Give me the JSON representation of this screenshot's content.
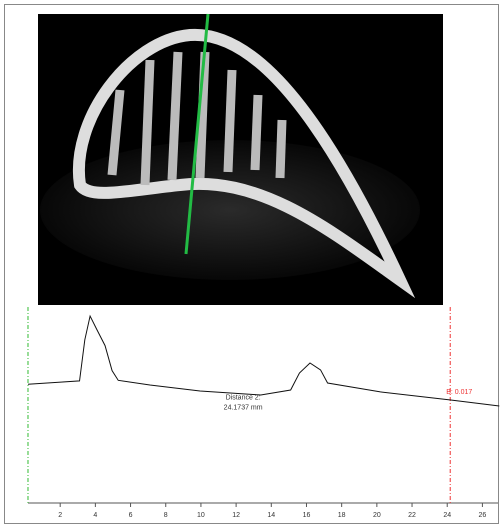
{
  "chart_data": {
    "type": "line",
    "x": [
      0.17,
      3.1,
      3.4,
      3.7,
      4.1,
      4.55,
      4.95,
      5.3,
      7.1,
      9.95,
      13.4,
      15.1,
      15.6,
      16.2,
      16.8,
      17.2,
      20.2,
      24.2,
      26.96
    ],
    "series": [
      {
        "color": "#111111",
        "values": [
          0.6,
          0.617,
          0.83,
          0.953,
          0.88,
          0.8,
          0.67,
          0.62,
          0.596,
          0.565,
          0.544,
          0.57,
          0.658,
          0.71,
          0.674,
          0.606,
          0.56,
          0.518,
          0.487
        ]
      }
    ],
    "xlim": [
      0,
      27
    ],
    "ylim": [
      0,
      1
    ],
    "xticks": [
      2,
      4,
      6,
      8,
      10,
      12,
      14,
      16,
      18,
      20,
      22,
      24,
      26
    ],
    "markers": [
      {
        "x": 0.17,
        "color": "#33bb33"
      },
      {
        "x": 24.17,
        "color": "#ee3333",
        "label": "B: 0.017"
      }
    ],
    "annotation": {
      "x": 12.4,
      "y": 0.53,
      "lines": [
        "Distance 2:",
        "24.1737 mm"
      ]
    }
  }
}
